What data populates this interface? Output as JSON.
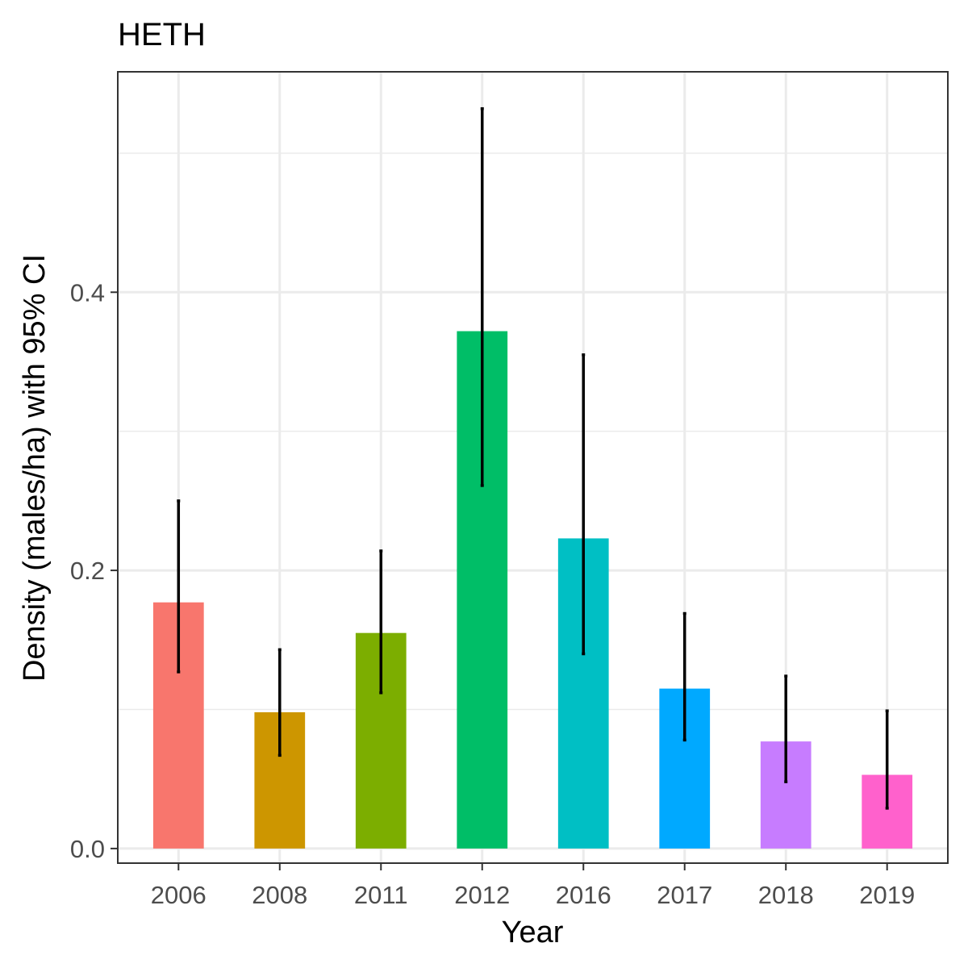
{
  "chart_data": {
    "type": "bar",
    "title": "HETH",
    "xlabel": "Year",
    "ylabel": "Density (males/ha) with 95% CI",
    "categories": [
      "2006",
      "2008",
      "2011",
      "2012",
      "2016",
      "2017",
      "2018",
      "2019"
    ],
    "values": [
      0.177,
      0.098,
      0.155,
      0.372,
      0.223,
      0.115,
      0.077,
      0.053
    ],
    "ci_lower": [
      0.127,
      0.067,
      0.112,
      0.261,
      0.14,
      0.078,
      0.048,
      0.029
    ],
    "ci_upper": [
      0.25,
      0.143,
      0.214,
      0.532,
      0.355,
      0.169,
      0.124,
      0.099
    ],
    "colors": [
      "#F8766D",
      "#CD9600",
      "#7CAE00",
      "#00BE67",
      "#00BFC4",
      "#00A9FF",
      "#C77CFF",
      "#FF61CC"
    ],
    "yticks": [
      "0.0",
      "0.2",
      "0.4"
    ],
    "ytick_values": [
      0,
      0.2,
      0.4
    ],
    "ylim": [
      -0.0105,
      0.5585
    ],
    "grid": true,
    "legend": "none"
  }
}
